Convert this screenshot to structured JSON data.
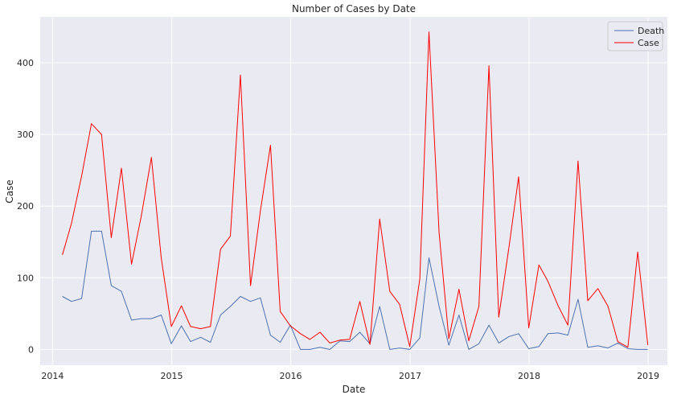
{
  "chart_data": {
    "type": "line",
    "title": "Number of Cases by Date",
    "xlabel": "Date",
    "ylabel": "Case",
    "xlim": [
      "2013-11-24",
      "2019-03-01"
    ],
    "ylim": [
      -22,
      464
    ],
    "xticks": [
      "2014-01-01",
      "2015-01-01",
      "2016-01-01",
      "2017-01-01",
      "2018-01-01",
      "2019-01-01"
    ],
    "xtick_labels": [
      "2014",
      "2015",
      "2016",
      "2017",
      "2018",
      "2019"
    ],
    "yticks": [
      0,
      100,
      200,
      300,
      400
    ],
    "ytick_labels": [
      "0",
      "100",
      "200",
      "300",
      "400"
    ],
    "grid": true,
    "legend_position": "top-right",
    "x": [
      "2014-01-31",
      "2014-02-28",
      "2014-03-31",
      "2014-04-30",
      "2014-05-31",
      "2014-06-30",
      "2014-07-31",
      "2014-08-31",
      "2014-09-30",
      "2014-10-31",
      "2014-11-30",
      "2014-12-31",
      "2015-01-31",
      "2015-02-28",
      "2015-03-31",
      "2015-04-30",
      "2015-05-31",
      "2015-06-30",
      "2015-07-31",
      "2015-08-31",
      "2015-09-30",
      "2015-10-31",
      "2015-11-30",
      "2015-12-31",
      "2016-01-31",
      "2016-02-29",
      "2016-03-31",
      "2016-04-30",
      "2016-05-31",
      "2016-06-30",
      "2016-07-31",
      "2016-08-31",
      "2016-09-30",
      "2016-10-31",
      "2016-11-30",
      "2016-12-31",
      "2017-01-31",
      "2017-02-28",
      "2017-03-31",
      "2017-04-30",
      "2017-05-31",
      "2017-06-30",
      "2017-07-31",
      "2017-08-31",
      "2017-09-30",
      "2017-10-31",
      "2017-11-30",
      "2017-12-31",
      "2018-01-31",
      "2018-02-28",
      "2018-03-31",
      "2018-04-30",
      "2018-05-31",
      "2018-06-30",
      "2018-07-31",
      "2018-08-31",
      "2018-09-30",
      "2018-10-31",
      "2018-11-30",
      "2018-12-31"
    ],
    "series": [
      {
        "name": "Death",
        "color": "#4c72b0",
        "values": [
          74,
          67,
          71,
          165,
          165,
          89,
          81,
          41,
          43,
          43,
          48,
          8,
          33,
          11,
          17,
          10,
          48,
          60,
          74,
          67,
          72,
          20,
          10,
          34,
          0,
          0,
          3,
          0,
          12,
          11,
          24,
          8,
          60,
          0,
          2,
          0,
          16,
          128,
          60,
          6,
          48,
          0,
          8,
          34,
          9,
          18,
          22,
          1,
          4,
          22,
          23,
          20,
          70,
          3,
          5,
          2,
          9,
          1,
          0,
          0
        ]
      },
      {
        "name": "Case",
        "color": "#ff0000",
        "values": [
          132,
          176,
          242,
          315,
          300,
          156,
          253,
          119,
          186,
          268,
          128,
          32,
          61,
          32,
          29,
          32,
          140,
          158,
          383,
          89,
          193,
          285,
          53,
          33,
          22,
          14,
          24,
          9,
          13,
          14,
          67,
          7,
          182,
          81,
          63,
          4,
          98,
          443,
          163,
          15,
          84,
          12,
          60,
          396,
          45,
          142,
          241,
          30,
          118,
          95,
          61,
          34,
          263,
          68,
          85,
          60,
          11,
          3,
          136,
          6
        ]
      }
    ]
  }
}
